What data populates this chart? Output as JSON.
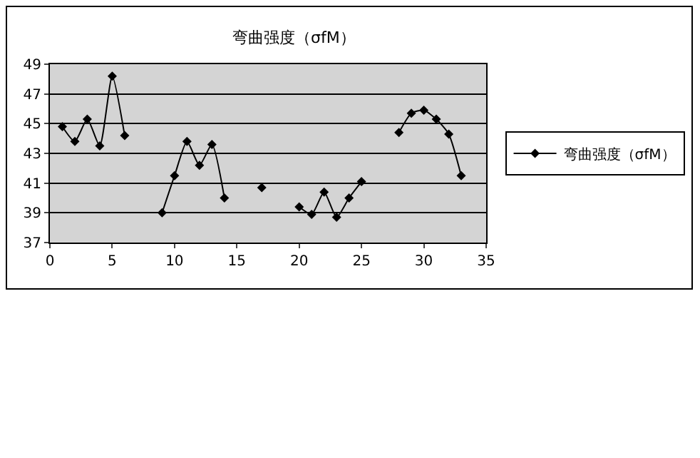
{
  "chart_data": {
    "type": "line",
    "title": "弯曲强度（σfM）",
    "x": [
      1,
      2,
      3,
      4,
      5,
      6,
      7,
      8,
      9,
      10,
      11,
      12,
      13,
      14,
      15,
      16,
      17,
      18,
      19,
      20,
      21,
      22,
      23,
      24,
      25,
      26,
      27,
      28,
      29,
      30,
      31,
      32,
      33
    ],
    "series": [
      {
        "name": "弯曲强度（σfM）",
        "color": "#000000",
        "values": [
          44.8,
          43.8,
          45.3,
          43.5,
          48.2,
          44.2,
          null,
          null,
          39.0,
          41.5,
          43.8,
          42.2,
          43.6,
          40.0,
          null,
          null,
          40.7,
          null,
          null,
          39.4,
          38.9,
          40.4,
          38.7,
          40.0,
          41.1,
          null,
          null,
          44.4,
          45.7,
          45.9,
          45.3,
          44.3,
          41.5
        ]
      }
    ],
    "xlim": [
      0,
      35
    ],
    "xticks": [
      0,
      5,
      10,
      15,
      20,
      25,
      30,
      35
    ],
    "ylim": [
      37,
      49
    ],
    "yticks": [
      37,
      39,
      41,
      43,
      45,
      47,
      49
    ],
    "grid": "y",
    "legend": "right",
    "marker": "diamond",
    "line_style": "solid"
  }
}
